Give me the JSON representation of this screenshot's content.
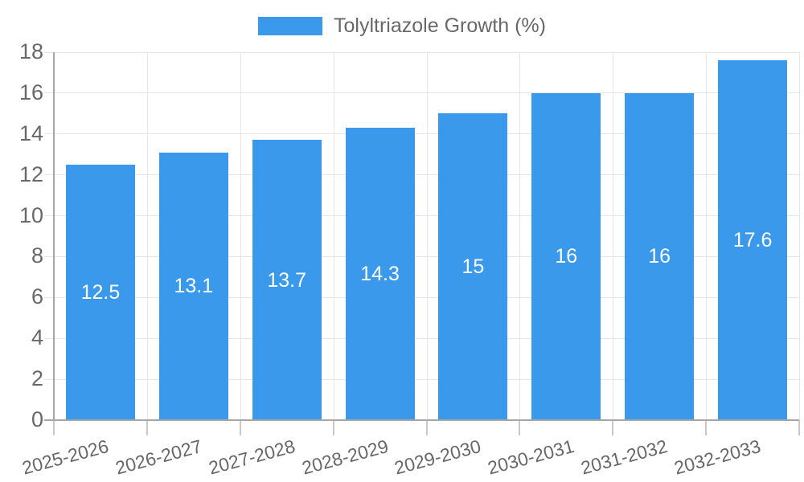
{
  "legend": {
    "label": "Tolyltriazole Growth (%)",
    "position": "top"
  },
  "chart_data": {
    "type": "bar",
    "title": "",
    "categories": [
      "2025-2026",
      "2026-2027",
      "2027-2028",
      "2028-2029",
      "2029-2030",
      "2030-2031",
      "2031-2032",
      "2032-2033"
    ],
    "series": [
      {
        "name": "Tolyltriazole Growth (%)",
        "values": [
          12.5,
          13.1,
          13.7,
          14.3,
          15,
          16,
          16,
          17.6
        ]
      }
    ],
    "value_labels_shown": true,
    "xlabel": "",
    "ylabel": "",
    "ylim": [
      0,
      18
    ],
    "ytick_step": 2,
    "yticks": [
      0,
      2,
      4,
      6,
      8,
      10,
      12,
      14,
      16,
      18
    ],
    "grid": true,
    "legend_position": "top",
    "x_label_rotation_deg": -15,
    "colors": {
      "bar": "#3b99eb",
      "value_label": "#ffffff",
      "axis_text": "#686868",
      "grid_line": "#e6e6e6",
      "axis_line": "#a6a6a6"
    }
  }
}
